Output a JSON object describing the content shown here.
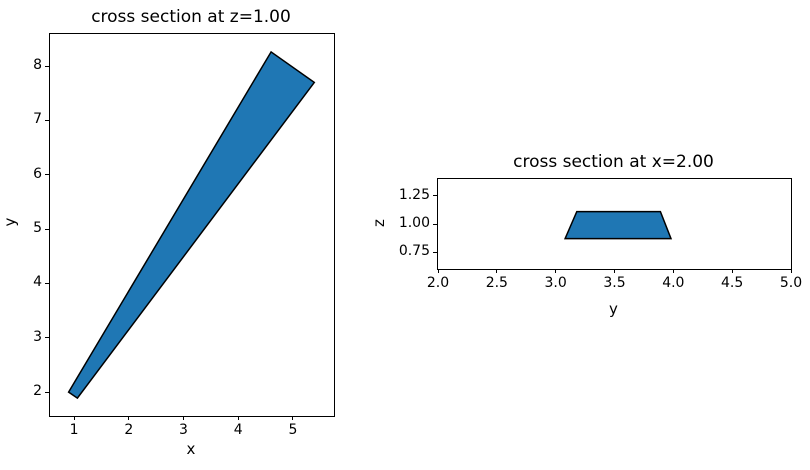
{
  "figure": {
    "background": "#ffffff",
    "patch_fill_color": "#1f77b4",
    "patch_edge_color": "#000000",
    "axis_color": "#000000",
    "text_color": "#000000"
  },
  "chart_data": [
    {
      "type": "area",
      "shape": "filled-polygon",
      "title": "cross section at z=1.00",
      "xlabel": "x",
      "ylabel": "y",
      "xlim": [
        0.56,
        5.75
      ],
      "ylim": [
        1.56,
        8.59
      ],
      "xtick_values": [
        1,
        2,
        3,
        4,
        5
      ],
      "xtick_labels": [
        "1",
        "2",
        "3",
        "4",
        "5"
      ],
      "ytick_values": [
        2,
        3,
        4,
        5,
        6,
        7,
        8
      ],
      "ytick_labels": [
        "2",
        "3",
        "4",
        "5",
        "6",
        "7",
        "8"
      ],
      "polygon_points": [
        [
          0.9,
          2.0
        ],
        [
          1.06,
          1.89
        ],
        [
          5.39,
          7.7
        ],
        [
          4.6,
          8.26
        ]
      ],
      "grid": false,
      "legend": null
    },
    {
      "type": "area",
      "shape": "filled-polygon",
      "title": "cross section at x=2.00",
      "xlabel": "y",
      "ylabel": "z",
      "xlim": [
        2.0,
        5.0
      ],
      "ylim": [
        0.6,
        1.4
      ],
      "xtick_values": [
        2.0,
        2.5,
        3.0,
        3.5,
        4.0,
        4.5,
        5.0
      ],
      "xtick_labels": [
        "2.0",
        "2.5",
        "3.0",
        "3.5",
        "4.0",
        "4.5",
        "5.0"
      ],
      "ytick_values": [
        0.75,
        1.0,
        1.25
      ],
      "ytick_labels": [
        "0.75",
        "1.00",
        "1.25"
      ],
      "polygon_points": [
        [
          3.08,
          0.87
        ],
        [
          3.98,
          0.87
        ],
        [
          3.89,
          1.11
        ],
        [
          3.18,
          1.11
        ]
      ],
      "grid": false,
      "legend": null
    }
  ]
}
